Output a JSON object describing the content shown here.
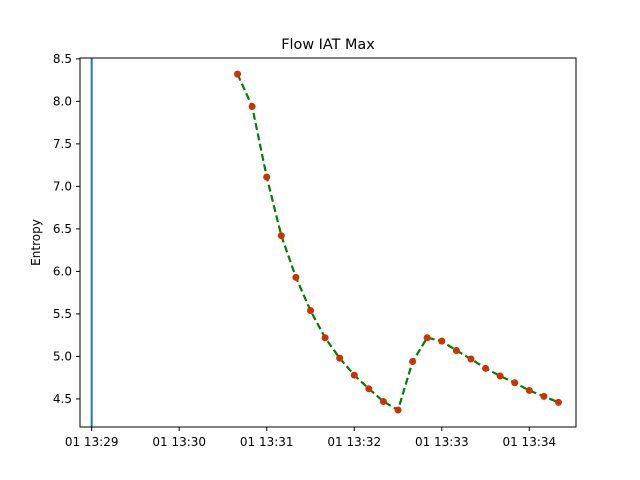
{
  "chart_data": {
    "type": "line",
    "title": "Flow IAT Max",
    "xlabel": "",
    "ylabel": "Entropy",
    "x_ticks": [
      "01 13:29",
      "01 13:30",
      "01 13:31",
      "01 13:32",
      "01 13:33",
      "01 13:34"
    ],
    "y_ticks": [
      "4.5",
      "5.0",
      "5.5",
      "6.0",
      "6.5",
      "7.0",
      "7.5",
      "8.0",
      "8.5"
    ],
    "xlim": [
      "13:28:52",
      "13:34:32"
    ],
    "ylim": [
      4.17,
      8.51
    ],
    "grid": false,
    "vertical_marker": {
      "x": "13:29:00",
      "color": "#1f77b4"
    },
    "series": [
      {
        "line_color": "#008000",
        "line_style": "dashed",
        "marker_color": "#cc3300",
        "x": [
          "13:30:40",
          "13:30:50",
          "13:31:00",
          "13:31:10",
          "13:31:20",
          "13:31:30",
          "13:31:40",
          "13:31:50",
          "13:32:00",
          "13:32:10",
          "13:32:20",
          "13:32:30",
          "13:32:40",
          "13:32:50",
          "13:33:00",
          "13:33:10",
          "13:33:20",
          "13:33:30",
          "13:33:40",
          "13:33:50",
          "13:34:00",
          "13:34:10",
          "13:34:20"
        ],
        "values": [
          8.32,
          7.94,
          7.11,
          6.42,
          5.93,
          5.54,
          5.22,
          4.98,
          4.78,
          4.62,
          4.47,
          4.37,
          4.94,
          5.22,
          5.18,
          5.07,
          4.97,
          4.86,
          4.77,
          4.69,
          4.6,
          4.53,
          4.46
        ]
      }
    ]
  }
}
